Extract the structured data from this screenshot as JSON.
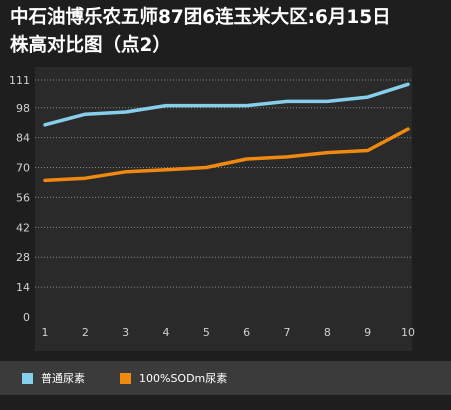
{
  "chart_data": {
    "type": "line",
    "title_line1": "中石油博乐农五师87团6连玉米大区:6月15日",
    "title_line2": "株高对比图（点2）",
    "x": [
      1,
      2,
      3,
      4,
      5,
      6,
      7,
      8,
      9,
      10
    ],
    "x_tick_labels": [
      "1",
      "2",
      "3",
      "4",
      "5",
      "6",
      "7",
      "8",
      "9",
      "10"
    ],
    "y_tick_labels": [
      "0",
      "14",
      "28",
      "42",
      "56",
      "70",
      "84",
      "98",
      "111"
    ],
    "y_ticks": [
      0,
      14,
      28,
      42,
      56,
      70,
      84,
      98,
      111
    ],
    "ylim": [
      0,
      111
    ],
    "xlim": [
      1,
      10
    ],
    "grid": "horizontal dotted",
    "legend_position": "bottom",
    "series": [
      {
        "name": "普通尿素",
        "color": "#87ceeb",
        "values": [
          90,
          95,
          96,
          99,
          99,
          99,
          101,
          101,
          103,
          109
        ]
      },
      {
        "name": "100%SODm尿素",
        "color": "#f0890f",
        "values": [
          64,
          65,
          68,
          69,
          70,
          74,
          75,
          77,
          78,
          88
        ]
      }
    ]
  }
}
